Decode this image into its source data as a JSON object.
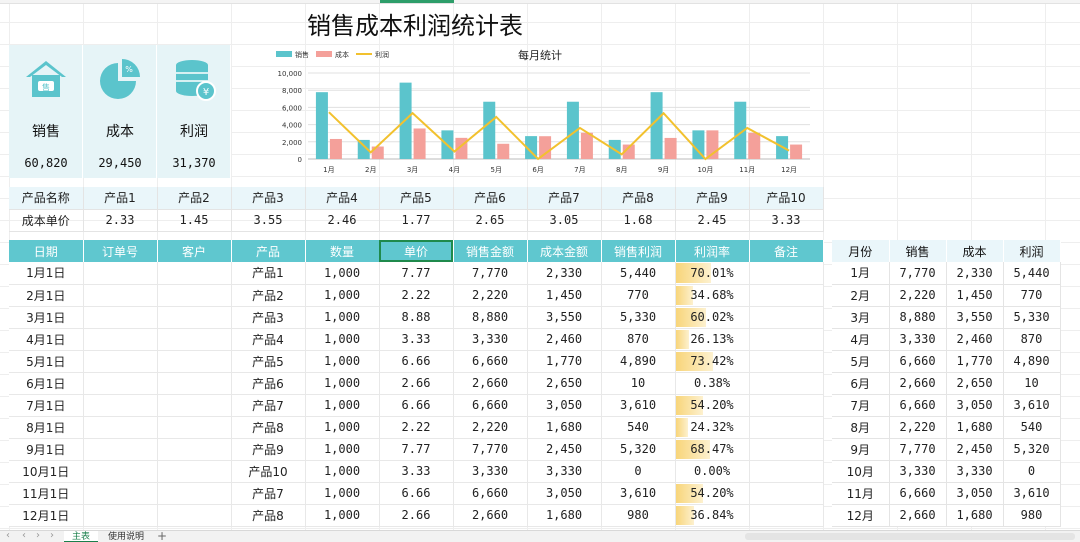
{
  "title": "销售成本利润统计表",
  "kpis": [
    {
      "label": "销售",
      "value": "60,820",
      "icon": "shop-icon"
    },
    {
      "label": "成本",
      "value": "29,450",
      "icon": "pie-chart-icon"
    },
    {
      "label": "利润",
      "value": "31,370",
      "icon": "coins-icon"
    }
  ],
  "colors": {
    "sales": "#5bc4cc",
    "cost": "#f4a09a",
    "profit": "#f2c12e",
    "header": "#5fc7cf",
    "panel": "#e6f4f7"
  },
  "chart_data": {
    "type": "bar",
    "title": "每月统计",
    "categories": [
      "1月",
      "2月",
      "3月",
      "4月",
      "5月",
      "6月",
      "7月",
      "8月",
      "9月",
      "10月",
      "11月",
      "12月"
    ],
    "series": [
      {
        "name": "销售",
        "type": "bar",
        "values": [
          7770,
          2220,
          8880,
          3330,
          6660,
          2660,
          6660,
          2220,
          7770,
          3330,
          6660,
          2660
        ]
      },
      {
        "name": "成本",
        "type": "bar",
        "values": [
          2330,
          1450,
          3550,
          2460,
          1770,
          2650,
          3050,
          1680,
          2450,
          3330,
          3050,
          1680
        ]
      },
      {
        "name": "利润",
        "type": "line",
        "values": [
          5440,
          770,
          5330,
          870,
          4890,
          10,
          3610,
          540,
          5320,
          0,
          3610,
          980
        ]
      }
    ],
    "yticks": [
      "0",
      "2,000",
      "4,000",
      "6,000",
      "8,000",
      "10,000"
    ],
    "ylim": [
      0,
      10000
    ],
    "legend": "top-left",
    "grid": true
  },
  "products": {
    "name_label": "产品名称",
    "price_label": "成本单价",
    "names": [
      "产品1",
      "产品2",
      "产品3",
      "产品4",
      "产品5",
      "产品6",
      "产品7",
      "产品8",
      "产品9",
      "产品10"
    ],
    "prices": [
      "2.33",
      "1.45",
      "3.55",
      "2.46",
      "1.77",
      "2.65",
      "3.05",
      "1.68",
      "2.45",
      "3.33"
    ]
  },
  "main_table": {
    "headers": [
      "日期",
      "订单号",
      "客户",
      "产品",
      "数量",
      "单价",
      "销售金额",
      "成本金额",
      "销售利润",
      "利润率",
      "备注"
    ],
    "rows": [
      {
        "date": "1月1日",
        "order": "",
        "customer": "",
        "product": "产品1",
        "qty": "1,000",
        "price": "7.77",
        "sales": "7,770",
        "cost": "2,330",
        "profit": "5,440",
        "rate": "70.01%",
        "rate_value": 0.7001,
        "note": ""
      },
      {
        "date": "2月1日",
        "order": "",
        "customer": "",
        "product": "产品2",
        "qty": "1,000",
        "price": "2.22",
        "sales": "2,220",
        "cost": "1,450",
        "profit": "770",
        "rate": "34.68%",
        "rate_value": 0.3468,
        "note": ""
      },
      {
        "date": "3月1日",
        "order": "",
        "customer": "",
        "product": "产品3",
        "qty": "1,000",
        "price": "8.88",
        "sales": "8,880",
        "cost": "3,550",
        "profit": "5,330",
        "rate": "60.02%",
        "rate_value": 0.6002,
        "note": ""
      },
      {
        "date": "4月1日",
        "order": "",
        "customer": "",
        "product": "产品4",
        "qty": "1,000",
        "price": "3.33",
        "sales": "3,330",
        "cost": "2,460",
        "profit": "870",
        "rate": "26.13%",
        "rate_value": 0.2613,
        "note": ""
      },
      {
        "date": "5月1日",
        "order": "",
        "customer": "",
        "product": "产品5",
        "qty": "1,000",
        "price": "6.66",
        "sales": "6,660",
        "cost": "1,770",
        "profit": "4,890",
        "rate": "73.42%",
        "rate_value": 0.7342,
        "note": ""
      },
      {
        "date": "6月1日",
        "order": "",
        "customer": "",
        "product": "产品6",
        "qty": "1,000",
        "price": "2.66",
        "sales": "2,660",
        "cost": "2,650",
        "profit": "10",
        "rate": "0.38%",
        "rate_value": 0.0038,
        "note": ""
      },
      {
        "date": "7月1日",
        "order": "",
        "customer": "",
        "product": "产品7",
        "qty": "1,000",
        "price": "6.66",
        "sales": "6,660",
        "cost": "3,050",
        "profit": "3,610",
        "rate": "54.20%",
        "rate_value": 0.542,
        "note": ""
      },
      {
        "date": "8月1日",
        "order": "",
        "customer": "",
        "product": "产品8",
        "qty": "1,000",
        "price": "2.22",
        "sales": "2,220",
        "cost": "1,680",
        "profit": "540",
        "rate": "24.32%",
        "rate_value": 0.2432,
        "note": ""
      },
      {
        "date": "9月1日",
        "order": "",
        "customer": "",
        "product": "产品9",
        "qty": "1,000",
        "price": "7.77",
        "sales": "7,770",
        "cost": "2,450",
        "profit": "5,320",
        "rate": "68.47%",
        "rate_value": 0.6847,
        "note": ""
      },
      {
        "date": "10月1日",
        "order": "",
        "customer": "",
        "product": "产品10",
        "qty": "1,000",
        "price": "3.33",
        "sales": "3,330",
        "cost": "3,330",
        "profit": "0",
        "rate": "0.00%",
        "rate_value": 0,
        "note": ""
      },
      {
        "date": "11月1日",
        "order": "",
        "customer": "",
        "product": "产品7",
        "qty": "1,000",
        "price": "6.66",
        "sales": "6,660",
        "cost": "3,050",
        "profit": "3,610",
        "rate": "54.20%",
        "rate_value": 0.542,
        "note": ""
      },
      {
        "date": "12月1日",
        "order": "",
        "customer": "",
        "product": "产品8",
        "qty": "1,000",
        "price": "2.66",
        "sales": "2,660",
        "cost": "1,680",
        "profit": "980",
        "rate": "36.84%",
        "rate_value": 0.3684,
        "note": ""
      }
    ]
  },
  "summary_table": {
    "headers": [
      "月份",
      "销售",
      "成本",
      "利润"
    ],
    "rows": [
      [
        "1月",
        "7,770",
        "2,330",
        "5,440"
      ],
      [
        "2月",
        "2,220",
        "1,450",
        "770"
      ],
      [
        "3月",
        "8,880",
        "3,550",
        "5,330"
      ],
      [
        "4月",
        "3,330",
        "2,460",
        "870"
      ],
      [
        "5月",
        "6,660",
        "1,770",
        "4,890"
      ],
      [
        "6月",
        "2,660",
        "2,650",
        "10"
      ],
      [
        "7月",
        "6,660",
        "3,050",
        "3,610"
      ],
      [
        "8月",
        "2,220",
        "1,680",
        "540"
      ],
      [
        "9月",
        "7,770",
        "2,450",
        "5,320"
      ],
      [
        "10月",
        "3,330",
        "3,330",
        "0"
      ],
      [
        "11月",
        "6,660",
        "3,050",
        "3,610"
      ],
      [
        "12月",
        "2,660",
        "1,680",
        "980"
      ]
    ]
  },
  "sheet_tabs": {
    "tabs": [
      "主表",
      "使用说明"
    ],
    "active": 0,
    "add": "+"
  }
}
